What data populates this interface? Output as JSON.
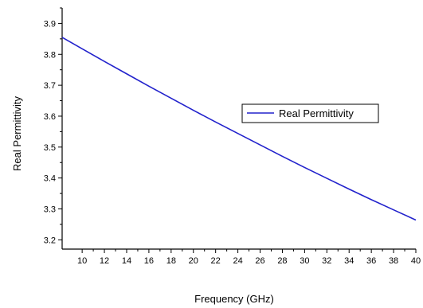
{
  "chart_data": {
    "type": "line",
    "title": "",
    "xlabel": "Frequency (GHz)",
    "ylabel": "Real Permittivity",
    "xlim": [
      8.2,
      40
    ],
    "ylim": [
      3.17,
      3.95
    ],
    "x_ticks": [
      10,
      12,
      14,
      16,
      18,
      20,
      22,
      24,
      26,
      28,
      30,
      32,
      34,
      36,
      38,
      40
    ],
    "y_ticks": [
      3.2,
      3.3,
      3.4,
      3.5,
      3.6,
      3.7,
      3.8,
      3.9
    ],
    "grid": false,
    "legend_position": "center-right",
    "series": [
      {
        "name": "Real Permittivity",
        "color": "#2222cc",
        "x": [
          8.2,
          10,
          12,
          14,
          16,
          18,
          20,
          22,
          24,
          26,
          28,
          30,
          32,
          34,
          36,
          38,
          40
        ],
        "y": [
          3.855,
          3.818,
          3.777,
          3.737,
          3.697,
          3.658,
          3.619,
          3.581,
          3.544,
          3.507,
          3.47,
          3.434,
          3.399,
          3.364,
          3.33,
          3.297,
          3.264
        ]
      }
    ]
  }
}
